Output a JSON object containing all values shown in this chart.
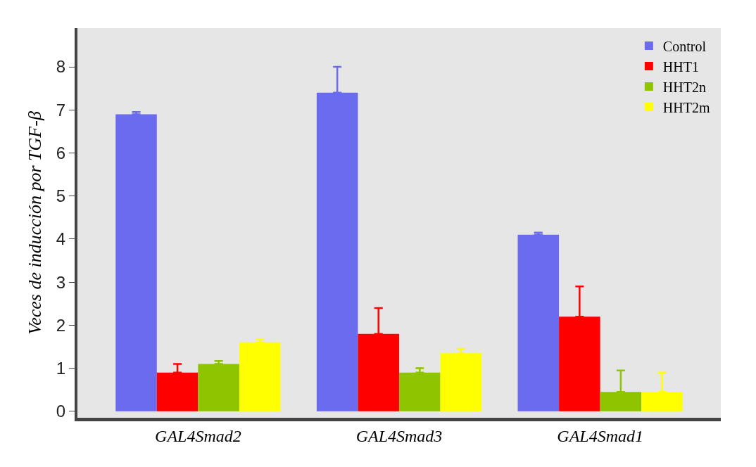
{
  "chart_data": {
    "type": "bar",
    "ylabel": "Veces de inducción por TGF-β",
    "categories": [
      "GAL4Smad2",
      "GAL4Smad3",
      "GAL4Smad1"
    ],
    "series": [
      {
        "name": "Control",
        "color": "#6b6bf0",
        "values": [
          6.9,
          7.4,
          4.1
        ],
        "errors": [
          [
            6.9,
            6.95
          ],
          [
            7.4,
            8.0
          ],
          [
            4.1,
            4.15
          ]
        ]
      },
      {
        "name": "HHT1",
        "color": "#ff0000",
        "values": [
          0.9,
          1.8,
          2.2
        ],
        "errors": [
          [
            0.9,
            1.1
          ],
          [
            1.8,
            2.4
          ],
          [
            2.2,
            2.9
          ]
        ]
      },
      {
        "name": "HHT2n",
        "color": "#8fc400",
        "values": [
          1.1,
          0.9,
          0.45
        ],
        "errors": [
          [
            1.1,
            1.17
          ],
          [
            0.9,
            1.0
          ],
          [
            0.45,
            0.95
          ]
        ]
      },
      {
        "name": "HHT2m",
        "color": "#ffff00",
        "values": [
          1.6,
          1.35,
          0.45
        ],
        "errors": [
          [
            1.6,
            1.67
          ],
          [
            1.35,
            1.45
          ],
          [
            0.45,
            0.9
          ]
        ]
      }
    ],
    "ylim": [
      -0.15,
      8.9
    ],
    "yticks": [
      0,
      1,
      2,
      3,
      4,
      5,
      6,
      7,
      8
    ],
    "grid": false,
    "legend": "top right"
  }
}
